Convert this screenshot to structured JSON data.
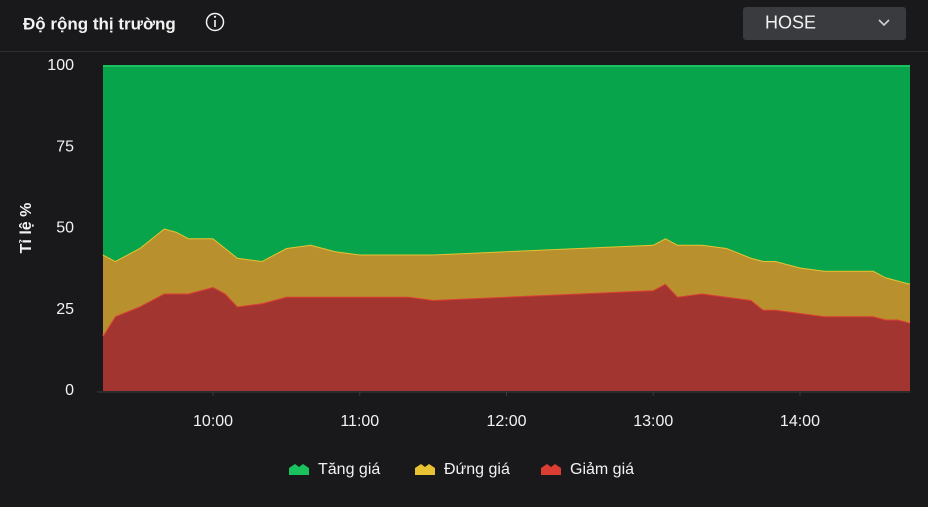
{
  "header": {
    "title": "Độ rộng thị trường",
    "dropdown": "HOSE"
  },
  "chart_data": {
    "type": "stacked-area",
    "ylabel": "Tỉ lệ %",
    "x": [
      "09:15",
      "09:20",
      "09:30",
      "09:40",
      "09:45",
      "09:50",
      "10:00",
      "10:05",
      "10:10",
      "10:20",
      "10:30",
      "10:40",
      "10:50",
      "11:00",
      "11:10",
      "11:20",
      "11:30",
      "13:00",
      "13:05",
      "13:10",
      "13:20",
      "13:30",
      "13:40",
      "13:45",
      "13:50",
      "14:00",
      "14:10",
      "14:20",
      "14:30",
      "14:35",
      "14:40",
      "14:45"
    ],
    "xlim": [
      "09:15",
      "14:45"
    ],
    "xticks": [
      "10:00",
      "11:00",
      "12:00",
      "13:00",
      "14:00"
    ],
    "ylim": [
      0,
      100
    ],
    "yticks": [
      0,
      25,
      50,
      75,
      100
    ],
    "grid": false,
    "legend": "bottom",
    "series": [
      {
        "name": "Tăng giá",
        "color": "#07a44b",
        "values": [
          58,
          60,
          56,
          50,
          51,
          53,
          53,
          56,
          59,
          60,
          56,
          55,
          57,
          58,
          58,
          58,
          58,
          55,
          53,
          55,
          55,
          56,
          59,
          60,
          60,
          62,
          63,
          63,
          63,
          65,
          66,
          67
        ]
      },
      {
        "name": "Đứng giá",
        "color": "#b8902e",
        "values": [
          25,
          17,
          18,
          20,
          19,
          17,
          15,
          14,
          15,
          13,
          15,
          16,
          14,
          13,
          13,
          13,
          14,
          14,
          14,
          16,
          15,
          15,
          13,
          15,
          15,
          14,
          14,
          14,
          14,
          13,
          12,
          12
        ]
      },
      {
        "name": "Giảm giá",
        "color": "#a33530",
        "values": [
          17,
          23,
          26,
          30,
          30,
          30,
          32,
          30,
          26,
          27,
          29,
          29,
          29,
          29,
          29,
          29,
          28,
          31,
          33,
          29,
          30,
          29,
          28,
          25,
          25,
          24,
          23,
          23,
          23,
          22,
          22,
          21
        ]
      }
    ]
  }
}
